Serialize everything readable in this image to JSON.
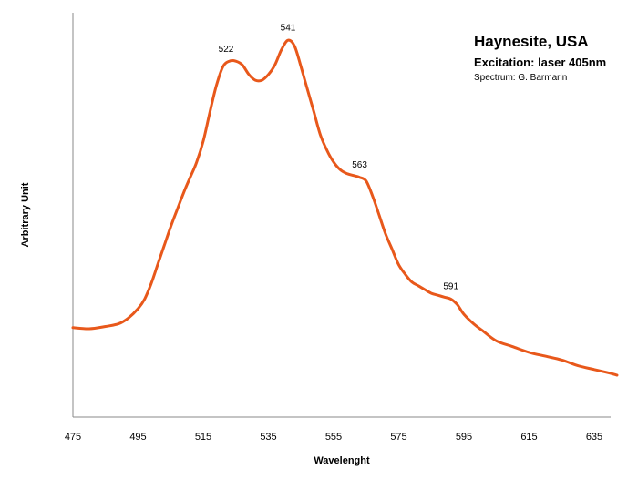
{
  "chart_data": {
    "type": "line",
    "title": "Haynesite, USA",
    "subtitle": "Excitation: laser 405nm",
    "credit": "Spectrum: G. Barmarin",
    "xlabel": "Wavelenght",
    "ylabel": "Arbitrary Unit",
    "xlim": [
      475,
      642
    ],
    "ylim": [
      0,
      100
    ],
    "x_ticks": [
      "475",
      "495",
      "515",
      "535",
      "555",
      "575",
      "595",
      "615",
      "635"
    ],
    "grid": false,
    "legend": "none",
    "line_color": "#e8581b",
    "series": [
      {
        "x": [
          475,
          480,
          485,
          489,
          492,
          495,
          497,
          499,
          501,
          503,
          505,
          507,
          509,
          511,
          513,
          515,
          517,
          519,
          521,
          523,
          525,
          527,
          529,
          531,
          533,
          535,
          537,
          539,
          541,
          543,
          545,
          547,
          549,
          551,
          553,
          555,
          557,
          559,
          561,
          563,
          565,
          567,
          569,
          571,
          573,
          575,
          577,
          579,
          581,
          583,
          585,
          587,
          589,
          591,
          593,
          595,
          598,
          601,
          605,
          610,
          615,
          620,
          625,
          630,
          635,
          640,
          642
        ],
        "y": [
          23.5,
          23.2,
          23.8,
          24.5,
          26,
          28.5,
          31,
          35,
          40,
          45,
          50,
          54.5,
          59,
          63,
          67,
          72.5,
          80,
          87,
          92,
          93.5,
          93.5,
          92.5,
          90,
          88.5,
          88.5,
          90,
          92.5,
          96.5,
          99,
          97.5,
          92,
          86,
          80,
          74,
          70,
          67,
          65,
          64,
          63.5,
          63,
          62,
          58,
          53,
          48,
          44,
          40,
          37.5,
          35.5,
          34.5,
          33.5,
          32.5,
          32,
          31.5,
          31,
          29.5,
          27,
          24.5,
          22.5,
          20,
          18.5,
          17,
          16,
          15,
          13.5,
          12.5,
          11.5,
          11
        ]
      }
    ],
    "annotations": [
      {
        "text": "522",
        "x": 522,
        "y": 93.6
      },
      {
        "text": "541",
        "x": 541,
        "y": 99.2
      },
      {
        "text": "563",
        "x": 563,
        "y": 63.2
      },
      {
        "text": "591",
        "x": 591,
        "y": 31.2
      }
    ]
  }
}
